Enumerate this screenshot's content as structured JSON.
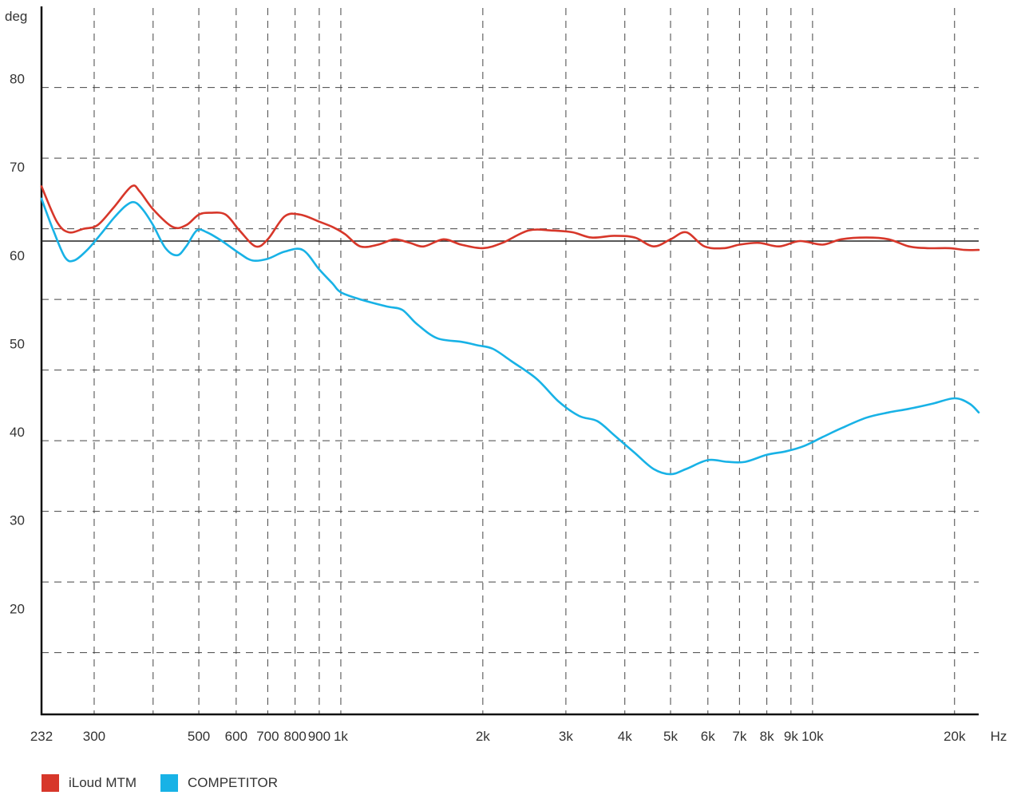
{
  "chart_data": {
    "type": "line",
    "ylabel": "deg",
    "xlabel": "Hz",
    "x_scale": "log",
    "xlim": [
      232,
      22500
    ],
    "ylim": [
      8,
      88
    ],
    "reference_line_y": 61.6,
    "grid": true,
    "y_ticks": [
      20,
      30,
      40,
      50,
      60,
      70,
      80
    ],
    "y_gridlines": [
      15,
      23,
      31,
      39,
      47,
      55,
      63,
      71,
      79
    ],
    "x_ticks": [
      {
        "value": 232,
        "label": "232"
      },
      {
        "value": 300,
        "label": "300"
      },
      {
        "value": 500,
        "label": "500"
      },
      {
        "value": 600,
        "label": "600"
      },
      {
        "value": 700,
        "label": "700"
      },
      {
        "value": 800,
        "label": "800"
      },
      {
        "value": 900,
        "label": "900"
      },
      {
        "value": 1000,
        "label": "1k"
      },
      {
        "value": 2000,
        "label": "2k"
      },
      {
        "value": 3000,
        "label": "3k"
      },
      {
        "value": 4000,
        "label": "4k"
      },
      {
        "value": 5000,
        "label": "5k"
      },
      {
        "value": 6000,
        "label": "6k"
      },
      {
        "value": 7000,
        "label": "7k"
      },
      {
        "value": 8000,
        "label": "8k"
      },
      {
        "value": 9000,
        "label": "9k"
      },
      {
        "value": 10000,
        "label": "10k"
      },
      {
        "value": 20000,
        "label": "20k"
      }
    ],
    "x_gridlines": [
      300,
      400,
      500,
      600,
      700,
      800,
      900,
      1000,
      2000,
      3000,
      4000,
      5000,
      6000,
      7000,
      8000,
      9000,
      10000,
      20000
    ],
    "legend_position": "bottom-left",
    "series": [
      {
        "name": "iLoud MTM",
        "color": "#d7372a",
        "points": [
          [
            232,
            67.8
          ],
          [
            250,
            63.8
          ],
          [
            265,
            62.6
          ],
          [
            285,
            63.0
          ],
          [
            305,
            63.4
          ],
          [
            330,
            65.4
          ],
          [
            360,
            67.8
          ],
          [
            375,
            67.2
          ],
          [
            400,
            65.2
          ],
          [
            440,
            63.2
          ],
          [
            470,
            63.4
          ],
          [
            500,
            64.6
          ],
          [
            530,
            64.8
          ],
          [
            570,
            64.6
          ],
          [
            610,
            62.8
          ],
          [
            660,
            61.0
          ],
          [
            700,
            61.8
          ],
          [
            760,
            64.4
          ],
          [
            820,
            64.6
          ],
          [
            900,
            63.8
          ],
          [
            960,
            63.2
          ],
          [
            1020,
            62.4
          ],
          [
            1100,
            61.0
          ],
          [
            1200,
            61.2
          ],
          [
            1300,
            61.8
          ],
          [
            1400,
            61.4
          ],
          [
            1500,
            61.0
          ],
          [
            1650,
            61.8
          ],
          [
            1800,
            61.2
          ],
          [
            2000,
            60.8
          ],
          [
            2200,
            61.4
          ],
          [
            2500,
            62.8
          ],
          [
            2800,
            62.8
          ],
          [
            3100,
            62.6
          ],
          [
            3400,
            62.0
          ],
          [
            3800,
            62.2
          ],
          [
            4200,
            62.0
          ],
          [
            4600,
            61.0
          ],
          [
            5000,
            61.8
          ],
          [
            5400,
            62.6
          ],
          [
            5900,
            61.0
          ],
          [
            6500,
            60.8
          ],
          [
            7000,
            61.2
          ],
          [
            7700,
            61.4
          ],
          [
            8500,
            61.0
          ],
          [
            9400,
            61.6
          ],
          [
            10500,
            61.2
          ],
          [
            11500,
            61.8
          ],
          [
            13000,
            62.0
          ],
          [
            14500,
            61.8
          ],
          [
            16000,
            61.0
          ],
          [
            17500,
            60.8
          ],
          [
            19500,
            60.8
          ],
          [
            21000,
            60.6
          ],
          [
            22500,
            60.6
          ]
        ]
      },
      {
        "name": "COMPETITOR",
        "color": "#18b2e6",
        "points": [
          [
            232,
            66.4
          ],
          [
            245,
            63.0
          ],
          [
            260,
            59.8
          ],
          [
            272,
            59.4
          ],
          [
            290,
            60.6
          ],
          [
            310,
            62.4
          ],
          [
            330,
            64.2
          ],
          [
            350,
            65.6
          ],
          [
            365,
            66.0
          ],
          [
            380,
            65.2
          ],
          [
            400,
            63.4
          ],
          [
            425,
            60.8
          ],
          [
            450,
            60.0
          ],
          [
            470,
            61.0
          ],
          [
            495,
            62.8
          ],
          [
            520,
            62.6
          ],
          [
            560,
            61.6
          ],
          [
            610,
            60.2
          ],
          [
            650,
            59.4
          ],
          [
            700,
            59.6
          ],
          [
            760,
            60.4
          ],
          [
            830,
            60.6
          ],
          [
            900,
            58.4
          ],
          [
            960,
            56.8
          ],
          [
            1000,
            55.8
          ],
          [
            1100,
            55.0
          ],
          [
            1250,
            54.2
          ],
          [
            1350,
            53.8
          ],
          [
            1450,
            52.2
          ],
          [
            1600,
            50.6
          ],
          [
            1800,
            50.2
          ],
          [
            1950,
            49.8
          ],
          [
            2100,
            49.4
          ],
          [
            2300,
            48.0
          ],
          [
            2600,
            46.0
          ],
          [
            2900,
            43.4
          ],
          [
            3200,
            41.8
          ],
          [
            3500,
            41.2
          ],
          [
            3800,
            39.6
          ],
          [
            4200,
            37.6
          ],
          [
            4600,
            35.8
          ],
          [
            5000,
            35.2
          ],
          [
            5400,
            35.8
          ],
          [
            6000,
            36.8
          ],
          [
            6600,
            36.6
          ],
          [
            7200,
            36.6
          ],
          [
            8000,
            37.4
          ],
          [
            8800,
            37.8
          ],
          [
            9600,
            38.4
          ],
          [
            10500,
            39.4
          ],
          [
            11500,
            40.4
          ],
          [
            13000,
            41.6
          ],
          [
            14500,
            42.2
          ],
          [
            16000,
            42.6
          ],
          [
            18000,
            43.2
          ],
          [
            20000,
            43.8
          ],
          [
            21500,
            43.2
          ],
          [
            22500,
            42.2
          ]
        ]
      }
    ]
  }
}
